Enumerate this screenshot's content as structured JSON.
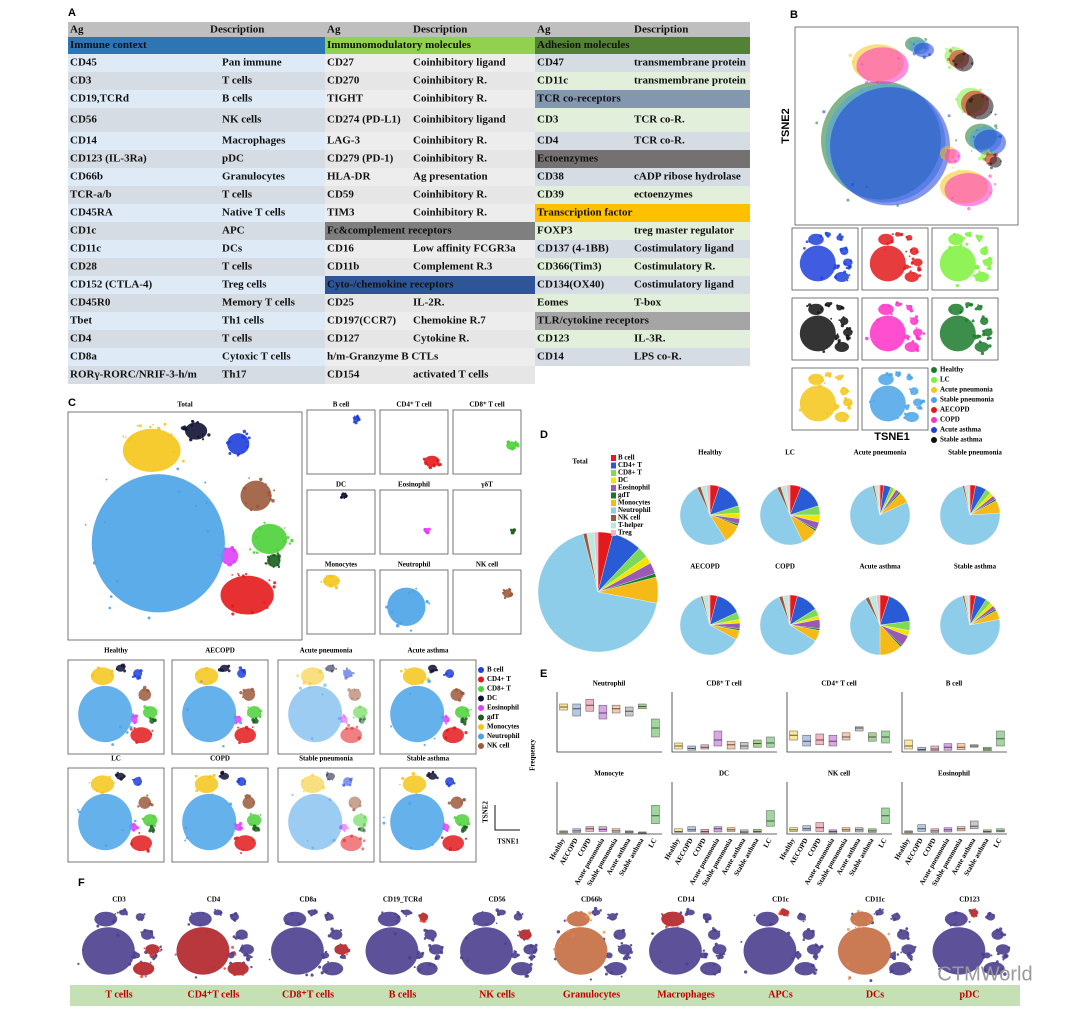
{
  "panel_a": {
    "label": "A",
    "columns": [
      {
        "header": [
          "Ag",
          "Description"
        ],
        "rows": [
          {
            "section": "Immune context",
            "color": "#2e75b6"
          },
          [
            "CD45",
            "Pan immune"
          ],
          [
            "CD3",
            "T cells"
          ],
          [
            "CD19,TCRd",
            "B cells"
          ],
          [
            "CD56",
            "NK cells"
          ],
          [
            "CD14",
            "Macrophages"
          ],
          [
            "CD123 (IL-3Ra)",
            "pDC"
          ],
          [
            "CD66b",
            "Granulocytes"
          ],
          [
            "TCR-a/b",
            "T cells"
          ],
          [
            "CD45RA",
            "Native T cells"
          ],
          [
            "CD1c",
            "APC"
          ],
          [
            "CD11c",
            "DCs"
          ],
          [
            "CD28",
            "T cells"
          ],
          [
            "CD152 (CTLA-4)",
            "Treg cells"
          ],
          [
            "CD45R0",
            "Memory T cells"
          ],
          [
            "Tbet",
            "Th1 cells"
          ],
          [
            "CD4",
            "T cells"
          ],
          [
            "CD8a",
            "Cytoxic T cells"
          ],
          [
            "RORγ-RORC/NRIF-3-h/m",
            "Th17"
          ]
        ]
      },
      {
        "header": [
          "Ag",
          "Description"
        ],
        "rows": [
          {
            "section": "Immunomodulatory  molecules",
            "color": "#92d050"
          },
          [
            "CD27",
            "Coinhibitory ligand"
          ],
          [
            "CD270",
            "Coinhibitory R."
          ],
          [
            "TIGHT",
            "Coinhibitory R."
          ],
          [
            "CD274 (PD-L1)",
            "Coinhibitory ligand"
          ],
          [
            "LAG-3",
            "Coinhibitory R."
          ],
          [
            "CD279 (PD-1)",
            "Coinhibitory R."
          ],
          [
            "HLA-DR",
            "Ag presentation"
          ],
          [
            "CD59",
            "Coinhibitory R."
          ],
          [
            "TIM3",
            "Coinhibitory R."
          ],
          {
            "section": "Fc&complement receptors",
            "color": "#7f7f7f"
          },
          [
            "CD16",
            "Low affinity FCGR3a"
          ],
          [
            "CD11b",
            "Complement R.3"
          ],
          {
            "section": "Cyto-/chemokine receptors",
            "color": "#2f5597"
          },
          [
            "CD25",
            "IL-2R."
          ],
          [
            "CD197(CCR7)",
            "Chemokine R.7"
          ],
          [
            "CD127",
            "Cytokine R."
          ],
          [
            "h/m-Granzyme B CTLs"
          ],
          [
            "CD154",
            "activated T cells"
          ]
        ]
      },
      {
        "header": [
          "Ag",
          "Description"
        ],
        "rows": [
          {
            "section": "Adhesion molecules",
            "color": "#548235"
          },
          [
            "CD47",
            "transmembrane protein"
          ],
          [
            "CD11c",
            "transmembrane protein"
          ],
          {
            "section": "TCR co-receptors",
            "color": "#8497b0"
          },
          [
            "CD3",
            "TCR co-R."
          ],
          [
            "CD4",
            "TCR co-R."
          ],
          {
            "section": "Ectoenzymes",
            "color": "#767171"
          },
          [
            "CD38",
            "cADP ribose hydrolase"
          ],
          [
            "CD39",
            "ectoenzymes"
          ],
          {
            "section": "Transcription factor",
            "color": "#ffc000"
          },
          [
            "FOXP3",
            "treg master regulator"
          ],
          [
            "CD137 (4-1BB)",
            "Costimulatory ligand"
          ],
          [
            "CD366(Tim3)",
            "Costimulatory R."
          ],
          [
            "CD134(OX40)",
            "Costimulatory ligand"
          ],
          [
            "Eomes",
            "T-box"
          ],
          {
            "section": "TLR/cytokine receptors",
            "color": "#a5a5a5"
          },
          [
            "CD123",
            "IL-3R."
          ],
          [
            "CD14",
            "LPS co-R."
          ]
        ]
      }
    ]
  },
  "panel_b": {
    "label": "B",
    "x_label": "TSNE1",
    "y_label": "TSNE2",
    "legend": [
      {
        "name": "Healthy",
        "color": "#1b7a2a"
      },
      {
        "name": "LC",
        "color": "#7cf23c"
      },
      {
        "name": "Acute pneumonia",
        "color": "#f5c518"
      },
      {
        "name": "Stable pneumonia",
        "color": "#4aa3e8"
      },
      {
        "name": "AECOPD",
        "color": "#e31a1c"
      },
      {
        "name": "COPD",
        "color": "#ff2fc8"
      },
      {
        "name": "Acute asthma",
        "color": "#1f3fdc"
      },
      {
        "name": "Stable asthma",
        "color": "#111111"
      }
    ]
  },
  "panel_c": {
    "label": "C",
    "total_title": "Total",
    "cell_panels": [
      "B cell",
      "CD4⁺ T cell",
      "CD8⁺ T cell",
      "DC",
      "Eosinophil",
      "γδT",
      "Monocytes",
      "Neutrophil",
      "NK cell"
    ],
    "condition_panels": [
      "Healthy",
      "AECOPD",
      "Acute pneumonia",
      "Acute asthma",
      "LC",
      "COPD",
      "Stable pneumonia",
      "Stable asthma"
    ],
    "x_label": "TSNE1",
    "y_label": "TSNE2",
    "legend": [
      {
        "name": "B cell",
        "color": "#1f3fdc"
      },
      {
        "name": "CD4+ T",
        "color": "#e31a1c"
      },
      {
        "name": "CD8+ T",
        "color": "#4cd137"
      },
      {
        "name": "DC",
        "color": "#111133"
      },
      {
        "name": "Eosinophil",
        "color": "#e040fb"
      },
      {
        "name": "gdT",
        "color": "#1b5e20"
      },
      {
        "name": "Monocytes",
        "color": "#f5c518"
      },
      {
        "name": "Neutrophil",
        "color": "#4aa3e8"
      },
      {
        "name": "NK cell",
        "color": "#9c5a3c"
      }
    ]
  },
  "panel_d": {
    "label": "D",
    "type": "pie",
    "categories": [
      "B cell",
      "CD4+ T",
      "CD8+ T",
      "DC",
      "Eosinophil",
      "gdT",
      "Monocytes",
      "Neutrophil",
      "NK cell",
      "T-helper",
      "Treg"
    ],
    "colors": [
      "#e31a1c",
      "#2a5bd7",
      "#7ed957",
      "#f2e600",
      "#9b59b6",
      "#1b7a2a",
      "#f5b918",
      "#8ecdea",
      "#9c5a3c",
      "#bde8e0",
      "#f7b6c8"
    ],
    "pies": [
      {
        "name": "Total",
        "values": [
          4,
          8,
          3,
          2,
          3,
          1,
          7,
          68,
          1,
          2,
          1
        ]
      },
      {
        "name": "Healthy",
        "values": [
          5,
          15,
          4,
          3,
          3,
          1,
          10,
          52,
          2,
          3,
          2
        ]
      },
      {
        "name": "LC",
        "values": [
          6,
          14,
          5,
          4,
          4,
          1,
          9,
          50,
          2,
          3,
          2
        ]
      },
      {
        "name": "Acute pneumonia",
        "values": [
          2,
          4,
          2,
          1,
          2,
          1,
          6,
          78,
          1,
          2,
          1
        ]
      },
      {
        "name": "Stable pneumonia",
        "values": [
          3,
          6,
          3,
          2,
          2,
          1,
          7,
          72,
          1,
          2,
          1
        ]
      },
      {
        "name": "AECOPD",
        "values": [
          4,
          14,
          4,
          2,
          3,
          1,
          5,
          62,
          1,
          3,
          1
        ]
      },
      {
        "name": "COPD",
        "values": [
          4,
          12,
          4,
          2,
          5,
          1,
          6,
          60,
          2,
          3,
          1
        ]
      },
      {
        "name": "Acute asthma",
        "values": [
          5,
          18,
          5,
          3,
          6,
          1,
          12,
          42,
          2,
          4,
          2
        ]
      },
      {
        "name": "Stable asthma",
        "values": [
          3,
          6,
          3,
          2,
          2,
          1,
          5,
          74,
          1,
          2,
          1
        ]
      }
    ]
  },
  "panel_e": {
    "label": "E",
    "type": "box",
    "y_label": "Frequency",
    "ylim": [
      0,
      100
    ],
    "groups": [
      "Healthy",
      "AECOPD",
      "COPD",
      "Acute pneumonia",
      "Stable pneumonia",
      "Acute asthma",
      "Stable asthma",
      "LC"
    ],
    "group_colors": [
      "#ffe699",
      "#b4c7e7",
      "#f4b6c2",
      "#d9a6e8",
      "#f8cbad",
      "#c9c9c9",
      "#a9d18e",
      "#9fd79f"
    ],
    "panels": [
      {
        "title": "Neutrophil",
        "boxes": [
          [
            70,
            75,
            80
          ],
          [
            60,
            72,
            80
          ],
          [
            68,
            78,
            88
          ],
          [
            55,
            65,
            78
          ],
          [
            65,
            72,
            78
          ],
          [
            60,
            68,
            75
          ],
          [
            72,
            76,
            80
          ],
          [
            25,
            40,
            55
          ]
        ]
      },
      {
        "title": "CD8⁺ T cell",
        "boxes": [
          [
            5,
            10,
            15
          ],
          [
            3,
            6,
            10
          ],
          [
            5,
            8,
            12
          ],
          [
            10,
            20,
            35
          ],
          [
            5,
            12,
            18
          ],
          [
            5,
            10,
            16
          ],
          [
            8,
            14,
            20
          ],
          [
            8,
            15,
            25
          ]
        ]
      },
      {
        "title": "CD4⁺ T cell",
        "boxes": [
          [
            20,
            28,
            35
          ],
          [
            10,
            18,
            28
          ],
          [
            12,
            20,
            30
          ],
          [
            10,
            18,
            28
          ],
          [
            20,
            25,
            32
          ],
          [
            35,
            40,
            42
          ],
          [
            18,
            25,
            32
          ],
          [
            15,
            25,
            35
          ]
        ]
      },
      {
        "title": "B cell",
        "boxes": [
          [
            5,
            10,
            20
          ],
          [
            2,
            4,
            8
          ],
          [
            2,
            5,
            10
          ],
          [
            3,
            8,
            14
          ],
          [
            4,
            8,
            14
          ],
          [
            8,
            10,
            12
          ],
          [
            2,
            5,
            8
          ],
          [
            10,
            22,
            35
          ]
        ]
      },
      {
        "title": "Monocyte",
        "boxes": [
          [
            2,
            4,
            6
          ],
          [
            3,
            6,
            10
          ],
          [
            5,
            10,
            14
          ],
          [
            5,
            9,
            14
          ],
          [
            3,
            6,
            10
          ],
          [
            2,
            4,
            6
          ],
          [
            1,
            2,
            4
          ],
          [
            20,
            35,
            55
          ]
        ]
      },
      {
        "title": "DC",
        "boxes": [
          [
            3,
            5,
            10
          ],
          [
            5,
            8,
            14
          ],
          [
            2,
            5,
            9
          ],
          [
            4,
            10,
            14
          ],
          [
            5,
            8,
            12
          ],
          [
            2,
            4,
            8
          ],
          [
            3,
            5,
            9
          ],
          [
            15,
            25,
            45
          ]
        ]
      },
      {
        "title": "NK cell",
        "boxes": [
          [
            5,
            8,
            12
          ],
          [
            6,
            10,
            16
          ],
          [
            5,
            12,
            22
          ],
          [
            2,
            5,
            8
          ],
          [
            5,
            8,
            12
          ],
          [
            4,
            8,
            12
          ],
          [
            3,
            6,
            10
          ],
          [
            20,
            35,
            50
          ]
        ]
      },
      {
        "title": "Eosinophil",
        "boxes": [
          [
            2,
            4,
            6
          ],
          [
            5,
            10,
            18
          ],
          [
            3,
            6,
            10
          ],
          [
            4,
            8,
            12
          ],
          [
            6,
            10,
            14
          ],
          [
            10,
            15,
            25
          ],
          [
            3,
            5,
            8
          ],
          [
            4,
            6,
            10
          ]
        ]
      }
    ]
  },
  "panel_f": {
    "label": "F",
    "markers": [
      "CD3",
      "CD4",
      "CD8a",
      "CD19_TCRd",
      "CD56",
      "CD66b",
      "CD14",
      "CD1c",
      "CD11c",
      "CD123"
    ],
    "cell_types": [
      "T cells",
      "CD4⁺T cells",
      "CD8⁺T cells",
      "B cells",
      "NK cells",
      "Granulocytes",
      "Macrophages",
      "APCs",
      "DCs",
      "pDC"
    ]
  },
  "watermark": "CTMWorld"
}
